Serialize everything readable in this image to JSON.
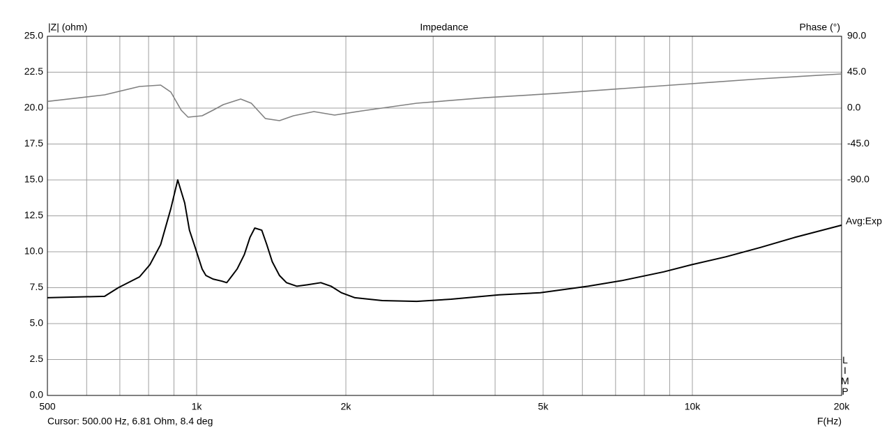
{
  "chart_data": {
    "type": "line",
    "title": "Impedance",
    "ylabel": "|Z| (ohm)",
    "y2label": "Phase (°)",
    "xlabel": "F(Hz)",
    "averaging": "Avg:Exp",
    "side_label": "LIMP",
    "cursor": "Cursor: 500.00 Hz, 6.81 Ohm, 8.4 deg",
    "xscale": "log",
    "grid": true,
    "xlim": [
      500,
      20000
    ],
    "xticks": [
      500,
      {
        "value": 1000,
        "label": "1k"
      },
      {
        "value": 2000,
        "label": "2k"
      },
      {
        "value": 5000,
        "label": "5k"
      },
      {
        "value": 10000,
        "label": "10k"
      },
      {
        "value": 20000,
        "label": "20k"
      }
    ],
    "xminor": [
      600,
      700,
      800,
      900,
      3000,
      4000,
      6000,
      7000,
      8000,
      9000
    ],
    "ylim": [
      0,
      25
    ],
    "yticks": [
      {
        "value": 0,
        "label": "0.0"
      },
      {
        "value": 2.5,
        "label": "2.5"
      },
      {
        "value": 5,
        "label": "5.0"
      },
      {
        "value": 7.5,
        "label": "7.5"
      },
      {
        "value": 10,
        "label": "10.0"
      },
      {
        "value": 12.5,
        "label": "12.5"
      },
      {
        "value": 15,
        "label": "15.0"
      },
      {
        "value": 17.5,
        "label": "17.5"
      },
      {
        "value": 20,
        "label": "20.0"
      },
      {
        "value": 22.5,
        "label": "22.5"
      },
      {
        "value": 25,
        "label": "25.0"
      }
    ],
    "y2lim": [
      -360,
      90
    ],
    "y2ticks": [
      {
        "value": 90,
        "label": "90.0"
      },
      {
        "value": 45,
        "label": "45.0"
      },
      {
        "value": 0,
        "label": "0.0"
      },
      {
        "value": -45,
        "label": "-45.0"
      },
      {
        "value": -90,
        "label": "-90.0"
      }
    ],
    "series": [
      {
        "name": "|Z|",
        "color": "#000000",
        "axis": "y",
        "x": [
          500,
          652,
          695,
          767,
          805,
          846,
          887,
          916,
          946,
          967,
          993,
          1026,
          1044,
          1079,
          1125,
          1150,
          1180,
          1207,
          1248,
          1281,
          1310,
          1353,
          1385,
          1421,
          1469,
          1518,
          1593,
          1672,
          1780,
          1867,
          1958,
          2086,
          2369,
          2779,
          3262,
          4077,
          4934,
          6162,
          7228,
          8752,
          9970,
          11690,
          13720,
          16090,
          20000
        ],
        "values": [
          6.8,
          6.9,
          7.5,
          8.25,
          9.1,
          10.5,
          13,
          15,
          13.4,
          11.5,
          10.3,
          8.8,
          8.35,
          8.1,
          7.95,
          7.85,
          8.35,
          8.8,
          9.8,
          11,
          11.65,
          11.5,
          10.5,
          9.3,
          8.35,
          7.85,
          7.6,
          7.7,
          7.85,
          7.6,
          7.15,
          6.8,
          6.6,
          6.55,
          6.7,
          7.0,
          7.15,
          7.6,
          8.0,
          8.6,
          9.1,
          9.65,
          10.3,
          11.0,
          11.85
        ]
      },
      {
        "name": "Phase",
        "color": "#808080",
        "axis": "y2",
        "x": [
          500,
          652,
          767,
          846,
          887,
          931,
          961,
          1026,
          1079,
          1132,
          1227,
          1289,
          1376,
          1469,
          1568,
          1724,
          1898,
          2156,
          2779,
          3818,
          5267,
          7228,
          9970,
          13720,
          20000
        ],
        "values": [
          8.4,
          16.6,
          27.1,
          28.8,
          20.1,
          -2.6,
          -11.4,
          -9.6,
          -2.6,
          4.4,
          11.4,
          6.1,
          -13.1,
          -15.7,
          -9.6,
          -4.4,
          -8.7,
          -3.5,
          6.1,
          13,
          18.3,
          24.5,
          30.6,
          36.7,
          42.8
        ]
      }
    ]
  }
}
